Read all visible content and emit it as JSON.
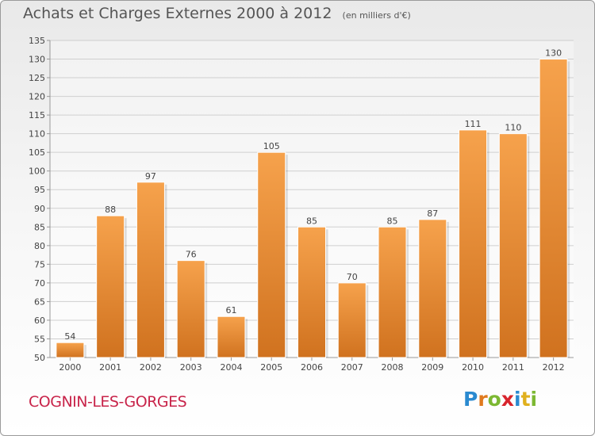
{
  "title": "Achats et Charges Externes 2000 à 2012",
  "unit_note": "(en milliers d'€)",
  "commune": "COGNIN-LES-GORGES",
  "logo_text": "Proxiti",
  "colors": {
    "bar_light": "#f6a24c",
    "bar_dark": "#d0721f",
    "title": "#555555",
    "commune": "#c8244a"
  },
  "chart_data": {
    "type": "bar",
    "title": "Achats et Charges Externes 2000 à 2012",
    "subtitle": "(en milliers d'€)",
    "categories": [
      "2000",
      "2001",
      "2002",
      "2003",
      "2004",
      "2005",
      "2006",
      "2007",
      "2008",
      "2009",
      "2010",
      "2011",
      "2012"
    ],
    "values": [
      54,
      88,
      97,
      76,
      61,
      105,
      85,
      70,
      85,
      87,
      111,
      110,
      130
    ],
    "ylim": [
      50,
      135
    ],
    "yticks": [
      50,
      55,
      60,
      65,
      70,
      75,
      80,
      85,
      90,
      95,
      100,
      105,
      110,
      115,
      120,
      125,
      130,
      135
    ],
    "grid": true,
    "legend": "none"
  }
}
